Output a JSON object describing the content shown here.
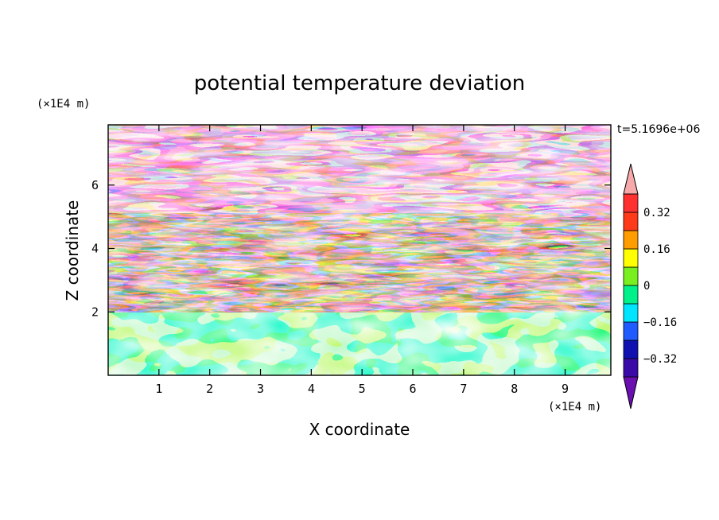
{
  "chart_data": {
    "type": "heatmap",
    "title": "potential temperature deviation",
    "xlabel": "X coordinate",
    "ylabel": "Z coordinate",
    "x_unit": "(×1E4 m)",
    "y_unit": "(×1E4 m)",
    "time_label": "t=5.1696e+06",
    "xlim": [
      0,
      9.9
    ],
    "ylim": [
      0,
      7.9
    ],
    "x_ticks": [
      1,
      2,
      3,
      4,
      5,
      6,
      7,
      8,
      9
    ],
    "y_ticks": [
      2,
      4,
      6
    ],
    "grid": false,
    "legend_placement": "right",
    "colorbar": {
      "levels": [
        -0.4,
        -0.32,
        -0.24,
        -0.16,
        -0.08,
        0,
        0.08,
        0.16,
        0.24,
        0.32,
        0.4
      ],
      "colors": [
        "#6a0fb0",
        "#3a0aa8",
        "#1010b0",
        "#1f5bff",
        "#00e5ff",
        "#00f08a",
        "#7aef20",
        "#ffff00",
        "#ff9c00",
        "#ff3a1a",
        "#ff3030",
        "#f7a9a9"
      ],
      "labels": [
        {
          "value": -0.32,
          "text": "−0.32"
        },
        {
          "value": -0.16,
          "text": "−0.16"
        },
        {
          "value": 0,
          "text": "0"
        },
        {
          "value": 0.16,
          "text": "0.16"
        },
        {
          "value": 0.32,
          "text": "0.32"
        }
      ]
    },
    "regions": [
      {
        "name": "lower-layer",
        "z_range": [
          0,
          2.0
        ],
        "value_range": [
          -0.08,
          0.08
        ],
        "dominant_colors": [
          "#00f08a",
          "#7aef20"
        ]
      },
      {
        "name": "upper-layer",
        "z_range": [
          2.0,
          7.9
        ],
        "value_range": [
          -0.4,
          0.4
        ],
        "dominant_colors": [
          "#f7a9a9",
          "#6a0fb0"
        ]
      }
    ]
  }
}
